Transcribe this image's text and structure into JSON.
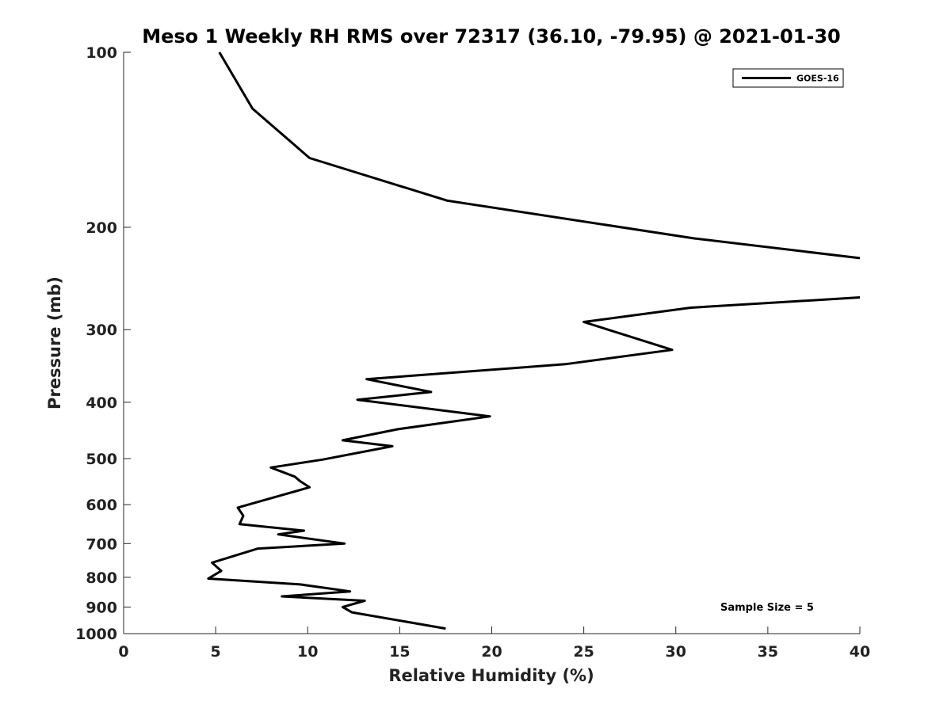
{
  "chart_data": {
    "type": "line",
    "title": "Meso 1 Weekly RH RMS over 72317 (36.10, -79.95) @ 2021-01-30",
    "xlabel": "Relative Humidity (%)",
    "ylabel": "Pressure (mb)",
    "xlim": [
      0,
      40
    ],
    "ylim": [
      100,
      1000
    ],
    "y_scale": "log",
    "y_reversed": true,
    "grid": false,
    "legend_position": "top-right",
    "x_ticks": [
      0,
      5,
      10,
      15,
      20,
      25,
      30,
      35,
      40
    ],
    "y_ticks": [
      100,
      200,
      300,
      400,
      500,
      600,
      700,
      800,
      900,
      1000
    ],
    "annotation": "Sample Size = 5",
    "series": [
      {
        "name": "GOES-16",
        "color": "#000000",
        "segments": [
          [
            [
              5.2,
              100
            ],
            [
              7.0,
              125
            ],
            [
              10.1,
              152
            ],
            [
              17.6,
              180
            ],
            [
              31.0,
              209
            ],
            [
              40.0,
              226
            ]
          ],
          [
            [
              40.0,
              264
            ],
            [
              30.8,
              275
            ],
            [
              25.0,
              291
            ],
            [
              29.8,
              325
            ],
            [
              24.0,
              344
            ],
            [
              13.2,
              365
            ],
            [
              16.7,
              384
            ],
            [
              12.7,
              396
            ],
            [
              19.9,
              423
            ],
            [
              14.9,
              445
            ],
            [
              11.9,
              465
            ],
            [
              14.6,
              476
            ],
            [
              10.8,
              502
            ],
            [
              8.0,
              518
            ],
            [
              9.3,
              537
            ],
            [
              9.6,
              547
            ],
            [
              10.1,
              560
            ],
            [
              6.2,
              607
            ],
            [
              6.5,
              627
            ],
            [
              6.3,
              648
            ],
            [
              9.8,
              665
            ],
            [
              8.4,
              675
            ],
            [
              12.0,
              700
            ],
            [
              7.3,
              714
            ],
            [
              4.8,
              755
            ],
            [
              5.3,
              780
            ],
            [
              4.6,
              804
            ],
            [
              9.6,
              823
            ],
            [
              12.3,
              846
            ],
            [
              8.6,
              863
            ],
            [
              13.1,
              878
            ],
            [
              11.9,
              900
            ],
            [
              12.4,
              919
            ],
            [
              17.5,
              980
            ]
          ]
        ]
      }
    ]
  }
}
